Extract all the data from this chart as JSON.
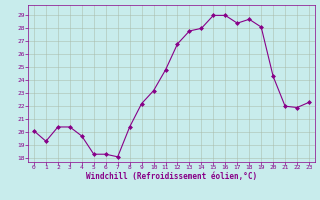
{
  "x": [
    0,
    1,
    2,
    3,
    4,
    5,
    6,
    7,
    8,
    9,
    10,
    11,
    12,
    13,
    14,
    15,
    16,
    17,
    18,
    19,
    20,
    21,
    22,
    23
  ],
  "y": [
    20.1,
    19.3,
    20.4,
    20.4,
    19.7,
    18.3,
    18.3,
    18.1,
    20.4,
    22.2,
    23.2,
    24.8,
    26.8,
    27.8,
    28.0,
    29.0,
    29.0,
    28.4,
    28.7,
    28.1,
    24.3,
    22.0,
    21.9,
    22.3
  ],
  "line_color": "#880088",
  "marker": "D",
  "marker_size": 2.0,
  "bg_color": "#c8ecec",
  "grid_color": "#aabbaa",
  "xlabel": "Windchill (Refroidissement éolien,°C)",
  "tick_color": "#880088",
  "ylim": [
    17.7,
    29.8
  ],
  "xlim": [
    -0.5,
    23.5
  ],
  "yticks": [
    18,
    19,
    20,
    21,
    22,
    23,
    24,
    25,
    26,
    27,
    28,
    29
  ],
  "xticks": [
    0,
    1,
    2,
    3,
    4,
    5,
    6,
    7,
    8,
    9,
    10,
    11,
    12,
    13,
    14,
    15,
    16,
    17,
    18,
    19,
    20,
    21,
    22,
    23
  ]
}
